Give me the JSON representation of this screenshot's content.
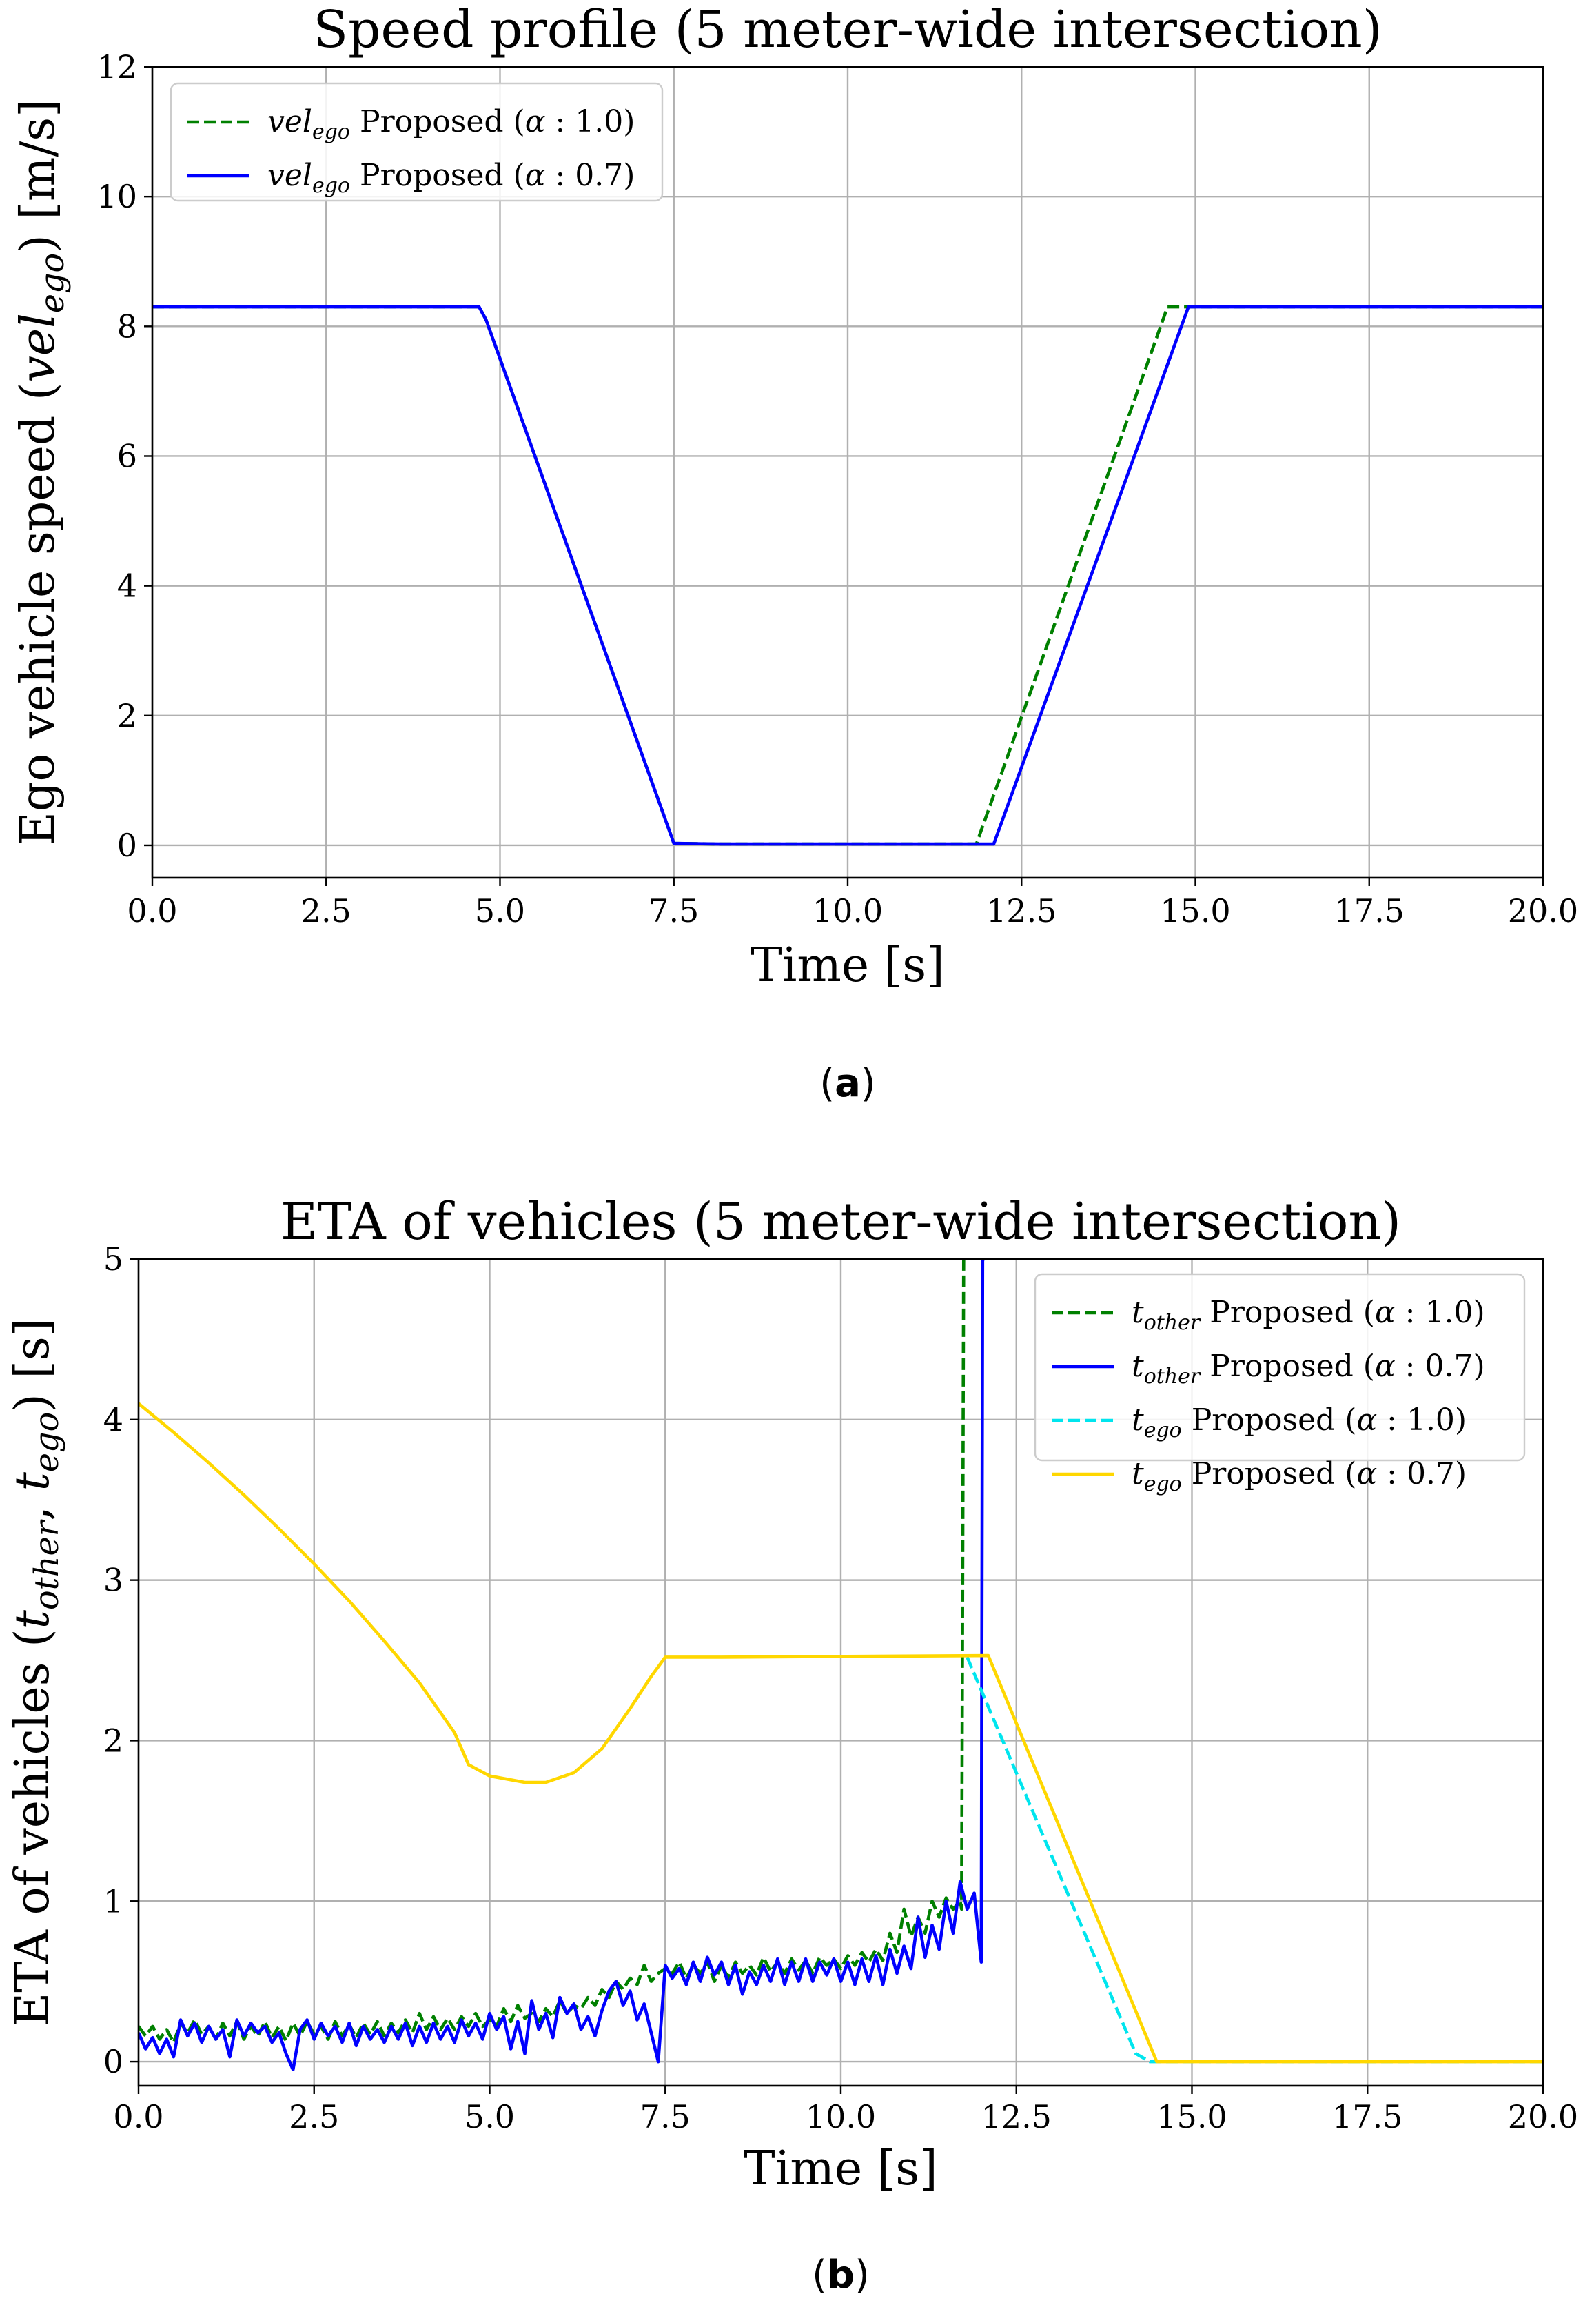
{
  "chart_data": [
    {
      "id": "a",
      "type": "line",
      "title": "Speed profile (5 meter-wide intersection)",
      "xlabel": "Time [s]",
      "ylabel": "Ego vehicle speed (vel_ego) [m/s]",
      "ylabel_parts": [
        "Ego vehicle speed (",
        "vel",
        "ego",
        ") [m/s]"
      ],
      "xlim": [
        0,
        20
      ],
      "ylim": [
        -0.5,
        12
      ],
      "xticks": [
        0,
        2.5,
        5,
        7.5,
        10,
        12.5,
        15,
        17.5,
        20
      ],
      "xtick_labels": [
        "0.0",
        "2.5",
        "5.0",
        "7.5",
        "10.0",
        "12.5",
        "15.0",
        "17.5",
        "20.0"
      ],
      "yticks": [
        0,
        2,
        4,
        6,
        8,
        10,
        12
      ],
      "ytick_labels": [
        "0",
        "2",
        "4",
        "6",
        "8",
        "10",
        "12"
      ],
      "grid": true,
      "legend_position": "upper-left",
      "caption": "(a)",
      "series": [
        {
          "name": "vel_ego Proposed (α : 1.0)",
          "label_parts": [
            "vel",
            "ego",
            " Proposed (",
            "α",
            " : 1.0)"
          ],
          "color": "#008000",
          "dash": "dashed",
          "x": [
            0,
            4.7,
            4.8,
            7.5,
            8.2,
            11.85,
            14.6,
            20
          ],
          "y": [
            8.3,
            8.3,
            8.1,
            0.03,
            0.02,
            0.02,
            8.3,
            8.3
          ]
        },
        {
          "name": "vel_ego Proposed (α : 0.7)",
          "label_parts": [
            "vel",
            "ego",
            " Proposed (",
            "α",
            " : 0.7)"
          ],
          "color": "#0000ff",
          "dash": "solid",
          "x": [
            0,
            4.7,
            4.8,
            7.5,
            8.2,
            12.1,
            14.9,
            20
          ],
          "y": [
            8.3,
            8.3,
            8.1,
            0.03,
            0.02,
            0.02,
            8.3,
            8.3
          ]
        }
      ]
    },
    {
      "id": "b",
      "type": "line",
      "title": "ETA of vehicles (5 meter-wide intersection)",
      "xlabel": "Time [s]",
      "ylabel": "ETA of vehicles (t_other, t_ego) [s]",
      "ylabel_parts": [
        "ETA of vehicles (",
        "t",
        "other",
        ", ",
        "t",
        "ego",
        ") [s]"
      ],
      "xlim": [
        0,
        20
      ],
      "ylim": [
        -0.15,
        5
      ],
      "xticks": [
        0,
        2.5,
        5,
        7.5,
        10,
        12.5,
        15,
        17.5,
        20
      ],
      "xtick_labels": [
        "0.0",
        "2.5",
        "5.0",
        "7.5",
        "10.0",
        "12.5",
        "15.0",
        "17.5",
        "20.0"
      ],
      "yticks": [
        0,
        1,
        2,
        3,
        4,
        5
      ],
      "ytick_labels": [
        "0",
        "1",
        "2",
        "3",
        "4",
        "5"
      ],
      "grid": true,
      "legend_position": "upper-right",
      "caption": "(b)",
      "series": [
        {
          "name": "t_other Proposed (α : 1.0)",
          "label_parts": [
            "t",
            "other",
            " Proposed (",
            "α",
            " : 1.0)"
          ],
          "color": "#008000",
          "dash": "dashed",
          "x": [
            0,
            0.1,
            0.2,
            0.3,
            0.4,
            0.5,
            0.6,
            0.7,
            0.8,
            0.9,
            1.0,
            1.1,
            1.2,
            1.3,
            1.4,
            1.5,
            1.6,
            1.7,
            1.8,
            1.9,
            2.0,
            2.1,
            2.2,
            2.3,
            2.4,
            2.5,
            2.6,
            2.7,
            2.8,
            2.9,
            3.0,
            3.1,
            3.2,
            3.3,
            3.4,
            3.5,
            3.6,
            3.7,
            3.8,
            3.9,
            4.0,
            4.1,
            4.2,
            4.3,
            4.4,
            4.5,
            4.6,
            4.7,
            4.8,
            4.9,
            5.0,
            5.1,
            5.2,
            5.3,
            5.4,
            5.5,
            5.6,
            5.7,
            5.8,
            5.9,
            6.0,
            6.1,
            6.2,
            6.3,
            6.4,
            6.5,
            6.6,
            6.7,
            6.8,
            6.9,
            7.0,
            7.1,
            7.2,
            7.3,
            7.4,
            7.5,
            7.6,
            7.7,
            7.8,
            7.9,
            8.0,
            8.1,
            8.2,
            8.3,
            8.4,
            8.5,
            8.6,
            8.7,
            8.8,
            8.9,
            9.0,
            9.1,
            9.2,
            9.3,
            9.4,
            9.5,
            9.6,
            9.7,
            9.8,
            9.9,
            10.0,
            10.1,
            10.2,
            10.3,
            10.4,
            10.5,
            10.6,
            10.7,
            10.8,
            10.9,
            11.0,
            11.1,
            11.2,
            11.3,
            11.4,
            11.5,
            11.6,
            11.7,
            11.72,
            11.75,
            11.77
          ],
          "y": [
            0.22,
            0.16,
            0.22,
            0.14,
            0.2,
            0.12,
            0.24,
            0.18,
            0.26,
            0.17,
            0.22,
            0.14,
            0.24,
            0.16,
            0.25,
            0.14,
            0.22,
            0.16,
            0.25,
            0.15,
            0.22,
            0.13,
            0.24,
            0.16,
            0.25,
            0.17,
            0.22,
            0.14,
            0.25,
            0.16,
            0.23,
            0.15,
            0.24,
            0.17,
            0.25,
            0.16,
            0.24,
            0.18,
            0.26,
            0.18,
            0.3,
            0.2,
            0.28,
            0.2,
            0.27,
            0.2,
            0.28,
            0.22,
            0.3,
            0.22,
            0.26,
            0.22,
            0.33,
            0.25,
            0.35,
            0.27,
            0.3,
            0.25,
            0.33,
            0.28,
            0.38,
            0.3,
            0.35,
            0.33,
            0.4,
            0.35,
            0.45,
            0.4,
            0.5,
            0.45,
            0.52,
            0.48,
            0.6,
            0.5,
            0.55,
            0.58,
            0.55,
            0.62,
            0.52,
            0.6,
            0.55,
            0.62,
            0.5,
            0.6,
            0.52,
            0.62,
            0.55,
            0.6,
            0.54,
            0.65,
            0.56,
            0.62,
            0.55,
            0.64,
            0.57,
            0.63,
            0.55,
            0.65,
            0.6,
            0.64,
            0.58,
            0.66,
            0.6,
            0.68,
            0.62,
            0.7,
            0.63,
            0.8,
            0.68,
            0.95,
            0.78,
            0.9,
            0.8,
            1.0,
            0.9,
            1.02,
            0.95,
            1.0,
            0.95,
            5.0,
            5.0
          ],
          "clip": true
        },
        {
          "name": "t_other Proposed (α : 0.7)",
          "label_parts": [
            "t",
            "other",
            " Proposed (",
            "α",
            " : 0.7)"
          ],
          "color": "#0000ff",
          "dash": "solid",
          "x": [
            0,
            0.1,
            0.2,
            0.3,
            0.4,
            0.5,
            0.6,
            0.7,
            0.8,
            0.9,
            1.0,
            1.1,
            1.2,
            1.3,
            1.4,
            1.5,
            1.6,
            1.7,
            1.8,
            1.9,
            2.0,
            2.1,
            2.2,
            2.3,
            2.4,
            2.5,
            2.6,
            2.7,
            2.8,
            2.9,
            3.0,
            3.1,
            3.2,
            3.3,
            3.4,
            3.5,
            3.6,
            3.7,
            3.8,
            3.9,
            4.0,
            4.1,
            4.2,
            4.3,
            4.4,
            4.5,
            4.6,
            4.7,
            4.8,
            4.9,
            5.0,
            5.1,
            5.2,
            5.3,
            5.4,
            5.5,
            5.6,
            5.7,
            5.8,
            5.9,
            6.0,
            6.1,
            6.2,
            6.3,
            6.4,
            6.5,
            6.6,
            6.7,
            6.8,
            6.9,
            7.0,
            7.1,
            7.2,
            7.3,
            7.4,
            7.5,
            7.6,
            7.7,
            7.8,
            7.9,
            8.0,
            8.1,
            8.2,
            8.3,
            8.4,
            8.5,
            8.6,
            8.7,
            8.8,
            8.9,
            9.0,
            9.1,
            9.2,
            9.3,
            9.4,
            9.5,
            9.6,
            9.7,
            9.8,
            9.9,
            10.0,
            10.1,
            10.2,
            10.3,
            10.4,
            10.5,
            10.6,
            10.7,
            10.8,
            10.9,
            11.0,
            11.1,
            11.2,
            11.3,
            11.4,
            11.5,
            11.6,
            11.7,
            11.8,
            11.9,
            12.0,
            12.02,
            12.05
          ],
          "y": [
            0.18,
            0.08,
            0.15,
            0.05,
            0.14,
            0.03,
            0.26,
            0.16,
            0.24,
            0.12,
            0.22,
            0.14,
            0.2,
            0.03,
            0.26,
            0.16,
            0.24,
            0.18,
            0.22,
            0.12,
            0.18,
            0.05,
            -0.05,
            0.2,
            0.26,
            0.14,
            0.24,
            0.16,
            0.22,
            0.12,
            0.24,
            0.1,
            0.22,
            0.14,
            0.2,
            0.12,
            0.22,
            0.14,
            0.24,
            0.1,
            0.22,
            0.12,
            0.24,
            0.14,
            0.22,
            0.12,
            0.26,
            0.16,
            0.24,
            0.14,
            0.3,
            0.2,
            0.28,
            0.08,
            0.25,
            0.05,
            0.38,
            0.2,
            0.3,
            0.15,
            0.4,
            0.3,
            0.36,
            0.2,
            0.28,
            0.16,
            0.32,
            0.44,
            0.5,
            0.35,
            0.44,
            0.26,
            0.36,
            0.18,
            0.0,
            0.6,
            0.52,
            0.58,
            0.48,
            0.62,
            0.5,
            0.65,
            0.54,
            0.62,
            0.48,
            0.6,
            0.42,
            0.56,
            0.48,
            0.6,
            0.5,
            0.64,
            0.48,
            0.62,
            0.5,
            0.64,
            0.5,
            0.62,
            0.54,
            0.64,
            0.5,
            0.62,
            0.48,
            0.64,
            0.5,
            0.66,
            0.48,
            0.7,
            0.55,
            0.72,
            0.58,
            0.9,
            0.65,
            0.85,
            0.7,
            1.0,
            0.8,
            1.12,
            0.95,
            1.05,
            0.62,
            5.0,
            5.0
          ],
          "clip": true
        },
        {
          "name": "t_ego Proposed (α : 1.0)",
          "label_parts": [
            "t",
            "ego",
            " Proposed (",
            "α",
            " : 1.0)"
          ],
          "color": "#00e5ee",
          "dash": "dashed",
          "x": [
            11.8,
            14.2,
            14.4,
            20
          ],
          "y": [
            2.52,
            0.05,
            0.0,
            0.0
          ]
        },
        {
          "name": "t_ego Proposed (α : 0.7)",
          "label_parts": [
            "t",
            "ego",
            " Proposed (",
            "α",
            " : 0.7)"
          ],
          "color": "#ffd700",
          "dash": "solid",
          "x": [
            0,
            0.5,
            1.0,
            1.5,
            2.0,
            2.5,
            3.0,
            3.5,
            4.0,
            4.5,
            4.7,
            5.0,
            5.5,
            5.8,
            6.2,
            6.6,
            7.0,
            7.3,
            7.5,
            8.3,
            12.1,
            14.5,
            20
          ],
          "y": [
            4.1,
            3.92,
            3.73,
            3.53,
            3.32,
            3.1,
            2.87,
            2.62,
            2.36,
            2.05,
            1.85,
            1.78,
            1.74,
            1.74,
            1.8,
            1.95,
            2.2,
            2.4,
            2.52,
            2.52,
            2.53,
            0.0,
            0.0
          ]
        }
      ]
    }
  ]
}
